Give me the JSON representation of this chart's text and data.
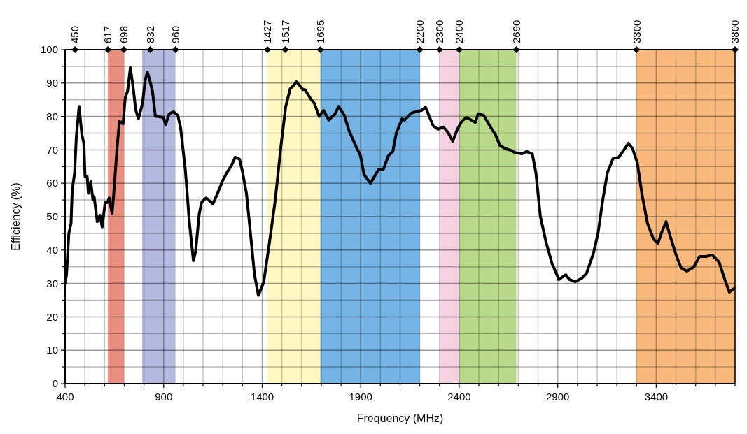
{
  "chart_data": {
    "type": "line",
    "xlabel": "Frequency (MHz)",
    "ylabel": "Efficiency (%)",
    "xlim": [
      400,
      3800
    ],
    "ylim": [
      0,
      100
    ],
    "xticks": [
      400,
      {
        "value": 500,
        "label": null
      },
      {
        "value": 600,
        "label": null
      },
      {
        "value": 700,
        "label": null
      },
      {
        "value": 800,
        "label": null
      },
      900,
      {
        "value": 1000,
        "label": null
      },
      {
        "value": 1100,
        "label": null
      },
      {
        "value": 1200,
        "label": null
      },
      {
        "value": 1300,
        "label": null
      },
      1400,
      {
        "value": 1500,
        "label": null
      },
      {
        "value": 1600,
        "label": null
      },
      {
        "value": 1700,
        "label": null
      },
      {
        "value": 1800,
        "label": null
      },
      1900,
      {
        "value": 2000,
        "label": null
      },
      {
        "value": 2100,
        "label": null
      },
      {
        "value": 2200,
        "label": null
      },
      {
        "value": 2300,
        "label": null
      },
      2400,
      {
        "value": 2500,
        "label": null
      },
      {
        "value": 2600,
        "label": null
      },
      {
        "value": 2700,
        "label": null
      },
      {
        "value": 2800,
        "label": null
      },
      2900,
      {
        "value": 3000,
        "label": null
      },
      {
        "value": 3100,
        "label": null
      },
      {
        "value": 3200,
        "label": null
      },
      {
        "value": 3300,
        "label": null
      },
      3400,
      {
        "value": 3500,
        "label": null
      },
      {
        "value": 3600,
        "label": null
      },
      {
        "value": 3700,
        "label": null
      },
      {
        "value": 3800,
        "label": null
      }
    ],
    "yticks": [
      0,
      {
        "value": 5,
        "label": null
      },
      10,
      {
        "value": 15,
        "label": null
      },
      20,
      {
        "value": 25,
        "label": null
      },
      30,
      {
        "value": 35,
        "label": null
      },
      40,
      {
        "value": 45,
        "label": null
      },
      50,
      {
        "value": 55,
        "label": null
      },
      60,
      {
        "value": 65,
        "label": null
      },
      70,
      {
        "value": 75,
        "label": null
      },
      80,
      {
        "value": 85,
        "label": null
      },
      90,
      {
        "value": 95,
        "label": null
      },
      100
    ],
    "x2lim": [
      400,
      3800
    ],
    "x2ticks": [
      450,
      617,
      698,
      832,
      960,
      1427,
      1517,
      1695,
      2200,
      2300,
      2400,
      2690,
      3300,
      3800
    ],
    "grid": true,
    "marker": "none",
    "line_style": "solid",
    "bands": [
      {
        "axis": "x",
        "from": 617,
        "to": 698,
        "color": "#ea8e80"
      },
      {
        "axis": "x",
        "from": 791,
        "to": 960,
        "color": "#b4badf"
      },
      {
        "axis": "x",
        "from": 1427,
        "to": 1695,
        "color": "#fff8c2"
      },
      {
        "axis": "x",
        "from": 1695,
        "to": 2200,
        "color": "#74b3e3"
      },
      {
        "axis": "x",
        "from": 2300,
        "to": 2400,
        "color": "#f6d1e1"
      },
      {
        "axis": "x",
        "from": 2400,
        "to": 2690,
        "color": "#b9d98a"
      },
      {
        "axis": "x",
        "from": 3300,
        "to": 3800,
        "color": "#f9b97c"
      }
    ],
    "series": [
      {
        "color": "#000000",
        "x": [
          400,
          407,
          419,
          430,
          436,
          448,
          457,
          471,
          485,
          495,
          501,
          512,
          518,
          530,
          541,
          547,
          563,
          577,
          588,
          603,
          614,
          624,
          638,
          647,
          664,
          676,
          694,
          705,
          717,
          731,
          746,
          758,
          772,
          793,
          805,
          817,
          828,
          843,
          858,
          869,
          899,
          910,
          928,
          951,
          972,
          986,
          1010,
          1031,
          1051,
          1062,
          1080,
          1092,
          1115,
          1150,
          1174,
          1197,
          1221,
          1244,
          1263,
          1285,
          1300,
          1320,
          1338,
          1361,
          1381,
          1408,
          1437,
          1466,
          1495,
          1519,
          1542,
          1560,
          1574,
          1607,
          1618,
          1642,
          1665,
          1689,
          1712,
          1738,
          1770,
          1788,
          1817,
          1841,
          1864,
          1899,
          1917,
          1950,
          1991,
          2014,
          2040,
          2063,
          2081,
          2110,
          2122,
          2157,
          2192,
          2209,
          2229,
          2250,
          2268,
          2291,
          2321,
          2344,
          2367,
          2391,
          2414,
          2437,
          2461,
          2482,
          2496,
          2525,
          2555,
          2584,
          2607,
          2637,
          2660,
          2683,
          2718,
          2742,
          2771,
          2789,
          2812,
          2841,
          2871,
          2906,
          2941,
          2959,
          2988,
          3023,
          3046,
          3081,
          3105,
          3128,
          3152,
          3181,
          3210,
          3240,
          3259,
          3280,
          3304,
          3327,
          3356,
          3386,
          3409,
          3427,
          3450,
          3473,
          3503,
          3526,
          3555,
          3590,
          3620,
          3655,
          3684,
          3719,
          3748,
          3771,
          3795
        ],
        "values": [
          30,
          32.6,
          45,
          48,
          58,
          63,
          74,
          83,
          74.5,
          72,
          62,
          62,
          57,
          60.5,
          55,
          56,
          48.5,
          50.4,
          46.9,
          54.2,
          54.2,
          55.6,
          51,
          57,
          71,
          78.6,
          77.8,
          85.6,
          87.6,
          94.6,
          88.3,
          82,
          79.3,
          84,
          90.4,
          93.3,
          91.2,
          87.6,
          80,
          80,
          79.7,
          77.6,
          80.8,
          81.4,
          80.3,
          76.6,
          64,
          48,
          36.8,
          39.5,
          50.6,
          54.2,
          55.6,
          53.8,
          57,
          60.5,
          63.2,
          65.3,
          67.8,
          67.2,
          63.5,
          57,
          46.5,
          32.6,
          26.4,
          30.5,
          42.3,
          54.8,
          71,
          82.8,
          88.3,
          89.3,
          90.4,
          88,
          88,
          85.6,
          83.9,
          80,
          81.8,
          78.9,
          80.8,
          83,
          80.3,
          75.7,
          72.6,
          68.2,
          62.6,
          60,
          64.2,
          64,
          68.2,
          69.5,
          75.1,
          79.3,
          78.9,
          81,
          81.6,
          81.8,
          82.8,
          79.7,
          77.2,
          76.2,
          76.8,
          75.1,
          72.6,
          76.2,
          78.6,
          79.7,
          78.9,
          78.2,
          80.8,
          80.3,
          77.2,
          74.5,
          71.3,
          70.3,
          69.9,
          69.2,
          68.8,
          69.5,
          68.8,
          63.2,
          50,
          42.3,
          36,
          31.2,
          32.6,
          31.2,
          30.5,
          31.6,
          33,
          39,
          45.2,
          54.8,
          63.2,
          67.4,
          67.8,
          70.3,
          72,
          70.3,
          66.1,
          56.9,
          47.9,
          43.3,
          42,
          45.2,
          48.5,
          43.7,
          38.1,
          34.7,
          33.7,
          34.9,
          38.1,
          38.1,
          38.5,
          36.4,
          31.2,
          27.4,
          28.5
        ]
      }
    ]
  }
}
